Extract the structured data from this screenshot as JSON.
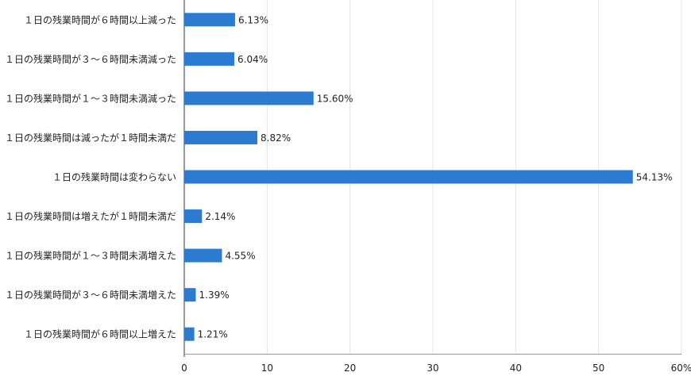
{
  "chart_data": {
    "type": "bar",
    "orientation": "horizontal",
    "categories": [
      "１日の残業時間が６時間以上減った",
      "１日の残業時間が３～６時間未満減った",
      "１日の残業時間が１～３時間未満減った",
      "１日の残業時間は減ったが１時間未満だ",
      "１日の残業時間は変わらない",
      "１日の残業時間は増えたが１時間未満だ",
      "１日の残業時間が１～３時間未満増えた",
      "１日の残業時間が３～６時間未満増えた",
      "１日の残業時間が６時間以上増えた"
    ],
    "values": [
      6.13,
      6.04,
      15.6,
      8.82,
      54.13,
      2.14,
      4.55,
      1.39,
      1.21
    ],
    "data_labels": [
      "6.13%",
      "6.04%",
      "15.60%",
      "8.82%",
      "54.13%",
      "2.14%",
      "4.55%",
      "1.39%",
      "1.21%"
    ],
    "xlim": [
      0,
      60
    ],
    "xticks": [
      0,
      10,
      20,
      30,
      40,
      50,
      60
    ],
    "xtick_labels": [
      "0",
      "10",
      "20",
      "30",
      "40",
      "50",
      "60%"
    ],
    "grid": true,
    "bar_color": "#2b7bd0",
    "title": "",
    "xlabel": "",
    "ylabel": ""
  }
}
